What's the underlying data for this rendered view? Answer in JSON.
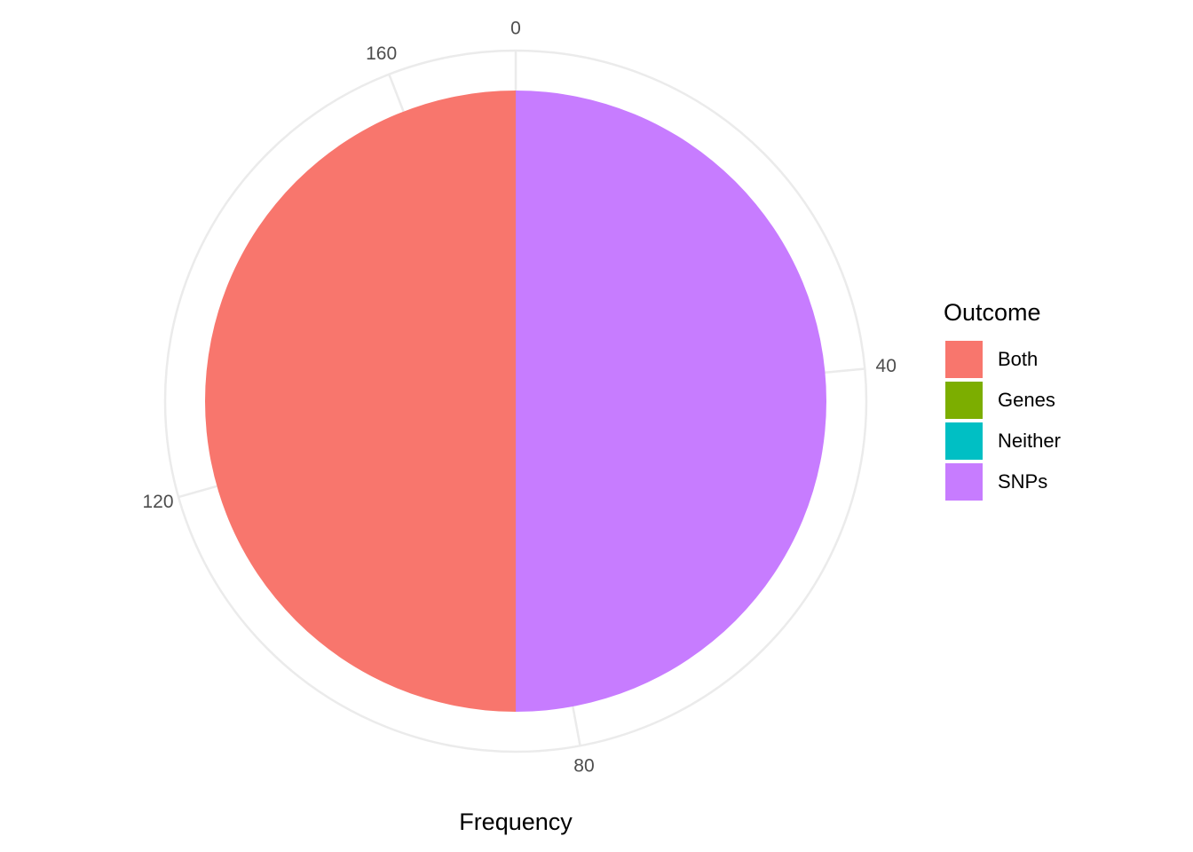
{
  "chart_data": {
    "type": "pie",
    "x_label": "Frequency",
    "legend_title": "Outcome",
    "categories": [
      "Both",
      "Genes",
      "Neither",
      "SNPs"
    ],
    "values": [
      85,
      0,
      0,
      85
    ],
    "colors": [
      "#f8766d",
      "#7cae00",
      "#00bfc4",
      "#c77cff"
    ],
    "thetalim": [
      0,
      170
    ],
    "thetaticks": [
      0,
      40,
      80,
      120,
      160
    ],
    "grid": true,
    "legend": "right"
  }
}
